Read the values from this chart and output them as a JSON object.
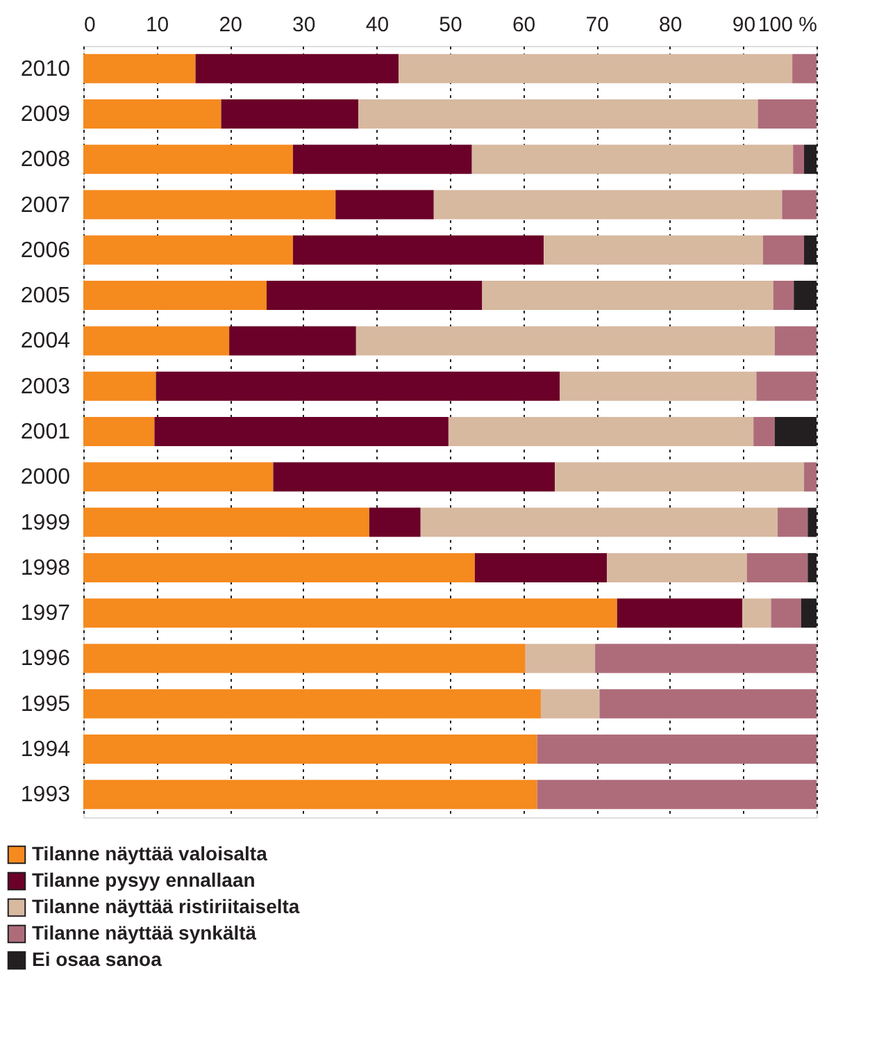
{
  "chart_data": {
    "type": "bar",
    "orientation": "horizontal",
    "stacked": true,
    "categories": [
      "2010",
      "2009",
      "2008",
      "2007",
      "2006",
      "2005",
      "2004",
      "2003",
      "2001",
      "2000",
      "1999",
      "1998",
      "1997",
      "1996",
      "1995",
      "1994",
      "1993"
    ],
    "series": [
      {
        "name": "Tilanne näyttää valoisalta",
        "color": "#f58a1f",
        "values": [
          15.3,
          18.8,
          28.6,
          34.4,
          28.6,
          25.0,
          19.9,
          9.9,
          9.7,
          25.9,
          39.0,
          53.4,
          72.8,
          60.3,
          62.4,
          61.9,
          61.9
        ]
      },
      {
        "name": "Tilanne pysyy ennallaan",
        "color": "#6b0028",
        "values": [
          27.7,
          18.7,
          24.4,
          13.4,
          34.2,
          29.4,
          17.3,
          55.1,
          40.1,
          38.4,
          7.0,
          18.0,
          17.1,
          0,
          0,
          0,
          0
        ]
      },
      {
        "name": "Tilanne näyttää ristiriitaiselta",
        "color": "#d7b9a0",
        "values": [
          53.7,
          54.5,
          43.8,
          47.5,
          29.9,
          39.7,
          57.1,
          26.8,
          41.6,
          34.0,
          48.7,
          19.1,
          3.9,
          9.5,
          8.0,
          0,
          0
        ]
      },
      {
        "name": "Tilanne näyttää synkältä",
        "color": "#ae6c7a",
        "values": [
          3.3,
          8.0,
          1.5,
          4.7,
          5.6,
          2.8,
          5.7,
          8.2,
          2.9,
          1.7,
          4.1,
          8.3,
          4.1,
          30.2,
          29.6,
          38.1,
          38.1
        ]
      },
      {
        "name": "Ei osaa sanoa",
        "color": "#231f20",
        "values": [
          0,
          0,
          1.7,
          0,
          1.7,
          3.1,
          0,
          0,
          5.7,
          0,
          1.2,
          1.2,
          2.1,
          0,
          0,
          0,
          0
        ]
      }
    ],
    "xlim": [
      0,
      100
    ],
    "xticks": [
      0,
      10,
      20,
      30,
      40,
      50,
      60,
      70,
      80,
      90,
      {
        "value": 100,
        "label": "100 %"
      }
    ],
    "grid": "x",
    "legend": "bottom"
  }
}
